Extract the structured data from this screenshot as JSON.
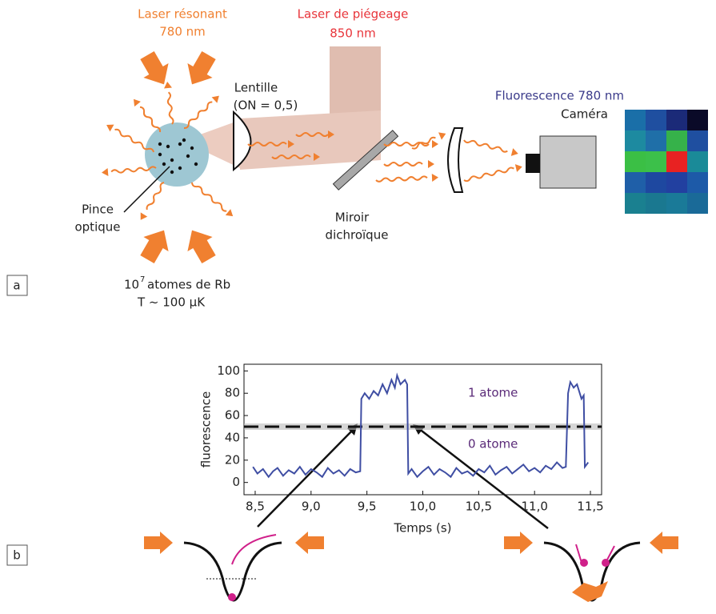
{
  "panel_a": {
    "label": "a",
    "laser_resonant": [
      "Laser résonant",
      "780 nm"
    ],
    "laser_trap": [
      "Laser de piégeage",
      "850 nm"
    ],
    "lens": [
      "Lentille",
      "(ON = 0,5)"
    ],
    "camera": [
      "Fluorescence 780 nm",
      "Caméra"
    ],
    "tweezer": [
      "Pince",
      "optique"
    ],
    "mirror": [
      "Miroir",
      "dichroïque"
    ],
    "atoms": [
      "10",
      "7",
      "atomes de Rb",
      "T  ~ 100 µK"
    ]
  },
  "panel_b": {
    "label": "b"
  },
  "chart_data": {
    "type": "line",
    "xlabel": "Temps (s)",
    "ylabel": "fluorescence",
    "annotations": [
      "1 atome",
      "0 atome"
    ],
    "threshold": 50,
    "xlim": [
      8.4,
      11.6
    ],
    "ylim": [
      -11,
      106
    ],
    "xticks": [
      {
        "value": 8.5,
        "label": "8,5"
      },
      {
        "value": 9.0,
        "label": "9,0"
      },
      {
        "value": 9.5,
        "label": "9,5"
      },
      {
        "value": 10.0,
        "label": "10,0"
      },
      {
        "value": 10.5,
        "label": "10,5"
      },
      {
        "value": 11.0,
        "label": "11,0"
      },
      {
        "value": 11.5,
        "label": "11,5"
      }
    ],
    "yticks": [
      0,
      20,
      40,
      60,
      80,
      100
    ],
    "x": [
      8.48,
      8.52,
      8.57,
      8.62,
      8.66,
      8.7,
      8.75,
      8.8,
      8.85,
      8.9,
      8.95,
      9.0,
      9.05,
      9.1,
      9.15,
      9.2,
      9.25,
      9.3,
      9.35,
      9.4,
      9.44,
      9.45,
      9.48,
      9.52,
      9.56,
      9.6,
      9.64,
      9.68,
      9.72,
      9.75,
      9.77,
      9.8,
      9.84,
      9.86,
      9.87,
      9.9,
      9.95,
      10.0,
      10.05,
      10.1,
      10.15,
      10.2,
      10.25,
      10.3,
      10.35,
      10.4,
      10.45,
      10.5,
      10.55,
      10.6,
      10.65,
      10.7,
      10.75,
      10.8,
      10.85,
      10.9,
      10.95,
      11.0,
      11.05,
      11.1,
      11.15,
      11.2,
      11.25,
      11.28,
      11.3,
      11.32,
      11.35,
      11.38,
      11.42,
      11.44,
      11.45,
      11.48
    ],
    "series": [
      {
        "color": "#3f4ea3",
        "values": [
          14,
          8,
          12,
          5,
          10,
          13,
          6,
          11,
          8,
          14,
          7,
          12,
          9,
          5,
          13,
          8,
          11,
          6,
          12,
          9,
          10,
          75,
          80,
          75,
          82,
          78,
          88,
          80,
          92,
          85,
          96,
          88,
          92,
          88,
          8,
          12,
          5,
          10,
          14,
          7,
          12,
          9,
          5,
          13,
          8,
          10,
          6,
          12,
          9,
          15,
          7,
          11,
          14,
          8,
          12,
          16,
          10,
          13,
          9,
          15,
          12,
          18,
          13,
          14,
          80,
          90,
          85,
          88,
          75,
          78,
          14,
          18
        ]
      }
    ]
  }
}
